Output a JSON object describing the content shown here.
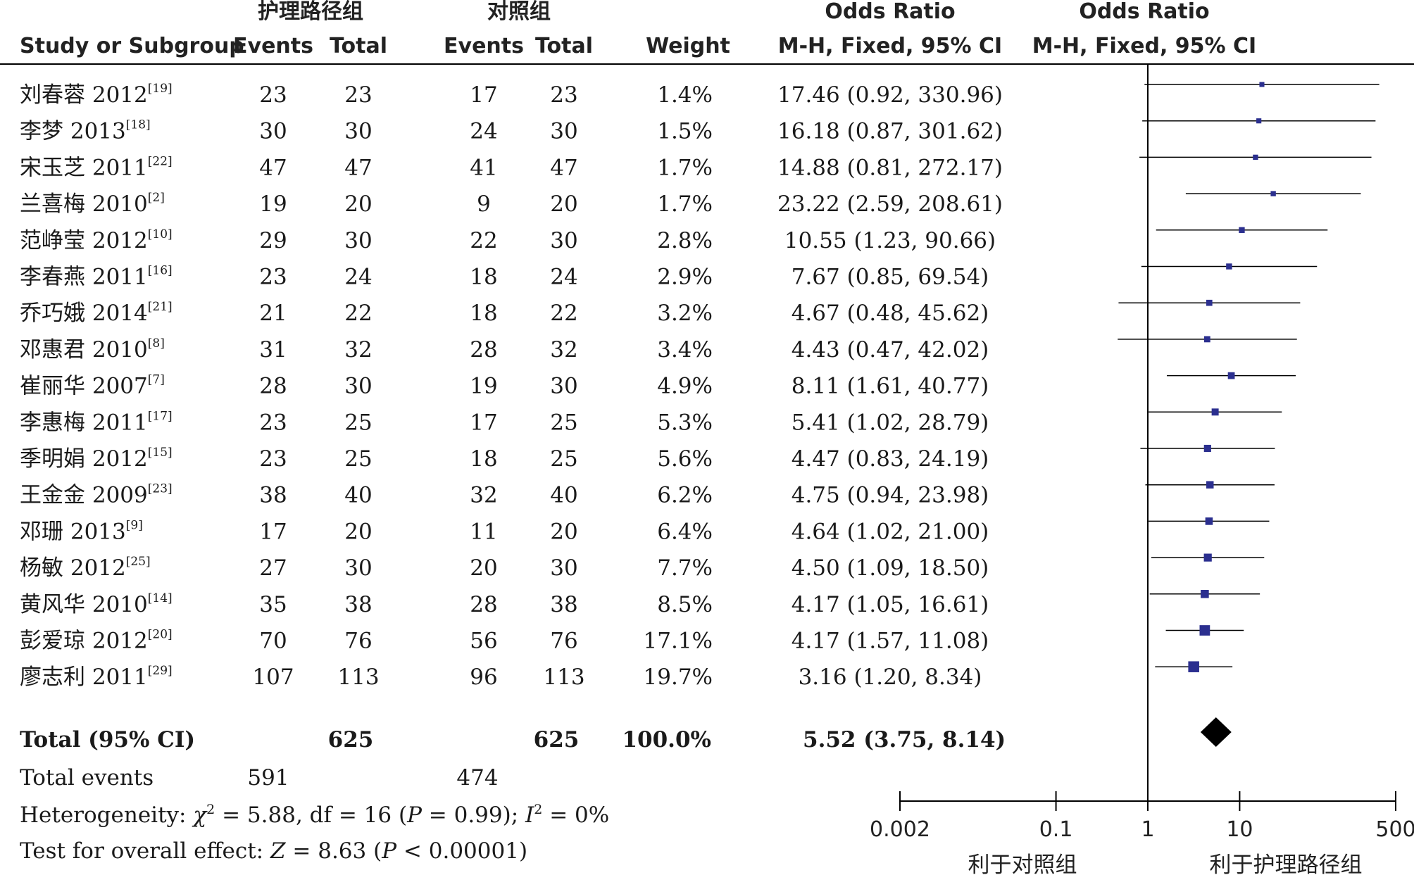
{
  "header": {
    "group_treatment": "护理路径组",
    "group_control": "对照组",
    "or_top_left": "Odds Ratio",
    "or_top_right": "Odds Ratio",
    "study_col": "Study or Subgroup",
    "events_treatment": "Events",
    "total_treatment": "Total",
    "events_control": "Events",
    "total_control": "Total",
    "weight_col": "Weight",
    "method_left": "M-H, Fixed, 95% CI",
    "method_right": "M-H, Fixed, 95% CI"
  },
  "rows": [
    {
      "name": "刘春蓉 2012",
      "ref": "[19]",
      "e1": "23",
      "n1": "23",
      "e2": "17",
      "n2": "23",
      "weight": "1.4%",
      "ci": "17.46 (0.92, 330.96)"
    },
    {
      "name": "李梦 2013",
      "ref": "[18]",
      "e1": "30",
      "n1": "30",
      "e2": "24",
      "n2": "30",
      "weight": "1.5%",
      "ci": "16.18 (0.87, 301.62)"
    },
    {
      "name": "宋玉芝 2011",
      "ref": "[22]",
      "e1": "47",
      "n1": "47",
      "e2": "41",
      "n2": "47",
      "weight": "1.7%",
      "ci": "14.88 (0.81, 272.17)"
    },
    {
      "name": "兰喜梅 2010",
      "ref": "[2]",
      "e1": "19",
      "n1": "20",
      "e2": "9",
      "n2": "20",
      "weight": "1.7%",
      "ci": "23.22 (2.59, 208.61)"
    },
    {
      "name": "范峥莹 2012",
      "ref": "[10]",
      "e1": "29",
      "n1": "30",
      "e2": "22",
      "n2": "30",
      "weight": "2.8%",
      "ci": "10.55 (1.23, 90.66)"
    },
    {
      "name": "李春燕 2011",
      "ref": "[16]",
      "e1": "23",
      "n1": "24",
      "e2": "18",
      "n2": "24",
      "weight": "2.9%",
      "ci": "7.67 (0.85, 69.54)"
    },
    {
      "name": "乔巧娥 2014",
      "ref": "[21]",
      "e1": "21",
      "n1": "22",
      "e2": "18",
      "n2": "22",
      "weight": "3.2%",
      "ci": "4.67 (0.48, 45.62)"
    },
    {
      "name": "邓惠君 2010",
      "ref": "[8]",
      "e1": "31",
      "n1": "32",
      "e2": "28",
      "n2": "32",
      "weight": "3.4%",
      "ci": "4.43 (0.47, 42.02)"
    },
    {
      "name": "崔丽华 2007",
      "ref": "[7]",
      "e1": "28",
      "n1": "30",
      "e2": "19",
      "n2": "30",
      "weight": "4.9%",
      "ci": "8.11 (1.61, 40.77)"
    },
    {
      "name": "李惠梅 2011",
      "ref": "[17]",
      "e1": "23",
      "n1": "25",
      "e2": "17",
      "n2": "25",
      "weight": "5.3%",
      "ci": "5.41 (1.02, 28.79)"
    },
    {
      "name": "季明娟 2012",
      "ref": "[15]",
      "e1": "23",
      "n1": "25",
      "e2": "18",
      "n2": "25",
      "weight": "5.6%",
      "ci": "4.47 (0.83, 24.19)"
    },
    {
      "name": "王金金 2009",
      "ref": "[23]",
      "e1": "38",
      "n1": "40",
      "e2": "32",
      "n2": "40",
      "weight": "6.2%",
      "ci": "4.75 (0.94, 23.98)"
    },
    {
      "name": "邓珊 2013",
      "ref": "[9]",
      "e1": "17",
      "n1": "20",
      "e2": "11",
      "n2": "20",
      "weight": "6.4%",
      "ci": "4.64 (1.02, 21.00)"
    },
    {
      "name": "杨敏 2012",
      "ref": "[25]",
      "e1": "27",
      "n1": "30",
      "e2": "20",
      "n2": "30",
      "weight": "7.7%",
      "ci": "4.50 (1.09, 18.50)"
    },
    {
      "name": "黄风华 2010",
      "ref": "[14]",
      "e1": "35",
      "n1": "38",
      "e2": "28",
      "n2": "38",
      "weight": "8.5%",
      "ci": "4.17 (1.05, 16.61)"
    },
    {
      "name": "彭爱琼 2012",
      "ref": "[20]",
      "e1": "70",
      "n1": "76",
      "e2": "56",
      "n2": "76",
      "weight": "17.1%",
      "ci": "4.17 (1.57, 11.08)"
    },
    {
      "name": "廖志利 2011",
      "ref": "[29]",
      "e1": "107",
      "n1": "113",
      "e2": "96",
      "n2": "113",
      "weight": "19.7%",
      "ci": "3.16 (1.20, 8.34)"
    }
  ],
  "total": {
    "label": "Total (95% CI)",
    "n1": "625",
    "n2": "625",
    "weight": "100.0%",
    "ci": "5.52 (3.75, 8.14)"
  },
  "events": {
    "label": "Total events",
    "e1": "591",
    "e2": "474"
  },
  "heterogeneity": {
    "prefix": "Heterogeneity: ",
    "chi": "χ",
    "sq": "2",
    "chi_rest": " = 5.88, df = 16 (",
    "p": "P",
    "p_rest": " = 0.99); ",
    "i": "I",
    "i_sq": "2",
    "i_rest": " = 0%"
  },
  "overall": {
    "prefix": "Test for overall effect: ",
    "z": "Z",
    "z_rest": " = 8.63 (",
    "p": "P",
    "p_rest": " < 0.00001)"
  },
  "axis": {
    "ticks": [
      "0.002",
      "0.1",
      "1",
      "10",
      "500"
    ],
    "favors_left": "利于对照组",
    "favors_right": "利于护理路径组"
  },
  "colors": {
    "marker": "#2b2f8f",
    "diamond": "#000000",
    "line": "#000000"
  },
  "chart_data": {
    "type": "forest",
    "scale": "log",
    "xlim": [
      0.002,
      500
    ],
    "reference_line": 1,
    "studies": [
      {
        "label": "刘春蓉 2012",
        "or": 17.46,
        "lower": 0.92,
        "upper": 330.96,
        "weight": 1.4
      },
      {
        "label": "李梦 2013",
        "or": 16.18,
        "lower": 0.87,
        "upper": 301.62,
        "weight": 1.5
      },
      {
        "label": "宋玉芝 2011",
        "or": 14.88,
        "lower": 0.81,
        "upper": 272.17,
        "weight": 1.7
      },
      {
        "label": "兰喜梅 2010",
        "or": 23.22,
        "lower": 2.59,
        "upper": 208.61,
        "weight": 1.7
      },
      {
        "label": "范峥莹 2012",
        "or": 10.55,
        "lower": 1.23,
        "upper": 90.66,
        "weight": 2.8
      },
      {
        "label": "李春燕 2011",
        "or": 7.67,
        "lower": 0.85,
        "upper": 69.54,
        "weight": 2.9
      },
      {
        "label": "乔巧娥 2014",
        "or": 4.67,
        "lower": 0.48,
        "upper": 45.62,
        "weight": 3.2
      },
      {
        "label": "邓惠君 2010",
        "or": 4.43,
        "lower": 0.47,
        "upper": 42.02,
        "weight": 3.4
      },
      {
        "label": "崔丽华 2007",
        "or": 8.11,
        "lower": 1.61,
        "upper": 40.77,
        "weight": 4.9
      },
      {
        "label": "李惠梅 2011",
        "or": 5.41,
        "lower": 1.02,
        "upper": 28.79,
        "weight": 5.3
      },
      {
        "label": "季明娟 2012",
        "or": 4.47,
        "lower": 0.83,
        "upper": 24.19,
        "weight": 5.6
      },
      {
        "label": "王金金 2009",
        "or": 4.75,
        "lower": 0.94,
        "upper": 23.98,
        "weight": 6.2
      },
      {
        "label": "邓珊 2013",
        "or": 4.64,
        "lower": 1.02,
        "upper": 21.0,
        "weight": 6.4
      },
      {
        "label": "杨敏 2012",
        "or": 4.5,
        "lower": 1.09,
        "upper": 18.5,
        "weight": 7.7
      },
      {
        "label": "黄风华 2010",
        "or": 4.17,
        "lower": 1.05,
        "upper": 16.61,
        "weight": 8.5
      },
      {
        "label": "彭爱琼 2012",
        "or": 4.17,
        "lower": 1.57,
        "upper": 11.08,
        "weight": 17.1
      },
      {
        "label": "廖志利 2011",
        "or": 3.16,
        "lower": 1.2,
        "upper": 8.34,
        "weight": 19.7
      }
    ],
    "pooled": {
      "label": "Total (95% CI)",
      "or": 5.52,
      "lower": 3.75,
      "upper": 8.14,
      "weight": 100.0
    }
  }
}
